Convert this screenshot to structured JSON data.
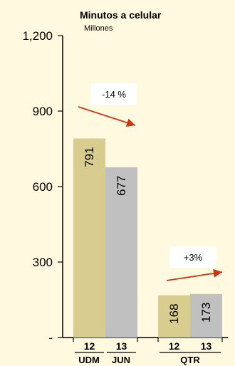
{
  "chart_data": {
    "type": "bar",
    "title": "Minutos a celular",
    "subtitle": "Millones",
    "ylim": [
      0,
      1200
    ],
    "yticks": [
      {
        "value": 0,
        "label": "-"
      },
      {
        "value": 300,
        "label": "300"
      },
      {
        "value": 600,
        "label": "600"
      },
      {
        "value": 900,
        "label": "900"
      },
      {
        "value": 1200,
        "label": "1,200"
      }
    ],
    "bars": [
      {
        "category": "12",
        "group": "UDM",
        "value": 791,
        "label": "791",
        "color": "#d8cc8f"
      },
      {
        "category": "13",
        "group": "JUN",
        "value": 677,
        "label": "677",
        "color": "#c0c0c0"
      },
      {
        "category": "12",
        "group": "QTR",
        "value": 168,
        "label": "168",
        "color": "#d8cc8f"
      },
      {
        "category": "13",
        "group": "QTR",
        "value": 173,
        "label": "173",
        "color": "#c0c0c0"
      }
    ],
    "group_labels": [
      "UDM",
      "JUN",
      "QTR"
    ],
    "annotations": [
      {
        "text": "-14 %",
        "arrow": "down",
        "arrow_color": "#cc3311"
      },
      {
        "text": "+3%",
        "arrow": "up",
        "arrow_color": "#cc3311"
      }
    ],
    "grid": false
  }
}
